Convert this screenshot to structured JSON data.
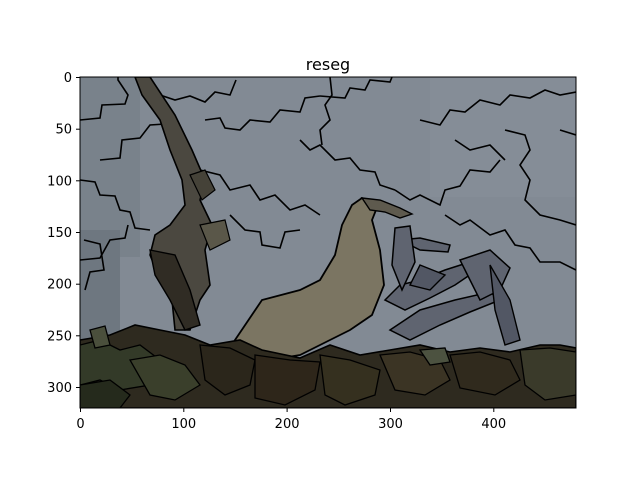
{
  "figure": {
    "title": "reseg",
    "x_ticks": [
      "0",
      "100",
      "200",
      "300",
      "400"
    ],
    "y_ticks": [
      "0",
      "50",
      "100",
      "150",
      "200",
      "250",
      "300"
    ]
  },
  "image": {
    "description_colors": {
      "sky": "#7f8790",
      "sky_dark": "#737c85",
      "trunk": "#4a463f",
      "trunk_light": "#7a7461",
      "ground": "#2b2418",
      "foliage": "#2f3424",
      "boundary": "#000000"
    }
  }
}
